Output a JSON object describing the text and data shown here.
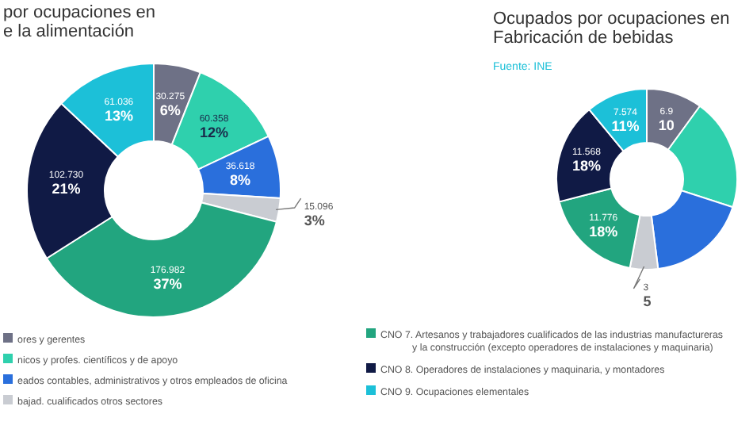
{
  "chart_data": [
    {
      "type": "donut",
      "title": "por ocupaciones en\ne la alimentación",
      "categories": [
        "ores y gerentes",
        "nicos y profes. científicos y de apoyo",
        "eados contables, administrativos y otros empleados de oficina",
        "bajad. cualificados otros sectores",
        "CNO 7. Artesanos y trabajadores cualificados de las industrias manufactureras\ny la construcción (excepto operadores de instalaciones y maquinaria)",
        "CNO 8. Operadores de instalaciones y maquinaria, y montadores",
        "CNO 9. Ocupaciones elementales"
      ],
      "values": [
        6,
        12,
        8,
        3,
        37,
        21,
        13
      ],
      "colors": [
        "#6e7186",
        "#2fd0ad",
        "#2a6fdc",
        "#c9ccd2",
        "#22a57f",
        "#101a45",
        "#1cc0d8"
      ],
      "value_labels": [
        "30.275\n6%",
        "60.358\n12%",
        "36.618\n8%",
        "15.096\n3%",
        "176.982\n37%",
        "102.730\n21%",
        "61.036\n13%"
      ],
      "legend": "bottom"
    },
    {
      "type": "donut",
      "title": "Ocupados por ocupaciones en\nFabricación de bebidas",
      "annotations": [
        "Fuente: INE"
      ],
      "values": [
        10,
        20,
        18,
        5,
        18,
        18,
        11
      ],
      "colors": [
        "#6e7186",
        "#2fd0ad",
        "#2a6fdc",
        "#c9ccd2",
        "#22a57f",
        "#101a45",
        "#1cc0d8"
      ],
      "value_labels": [
        "6.9\n10",
        null,
        null,
        "3\n5",
        "11.776\n18%",
        "11.568\n18%",
        "7.574\n11%"
      ]
    }
  ]
}
